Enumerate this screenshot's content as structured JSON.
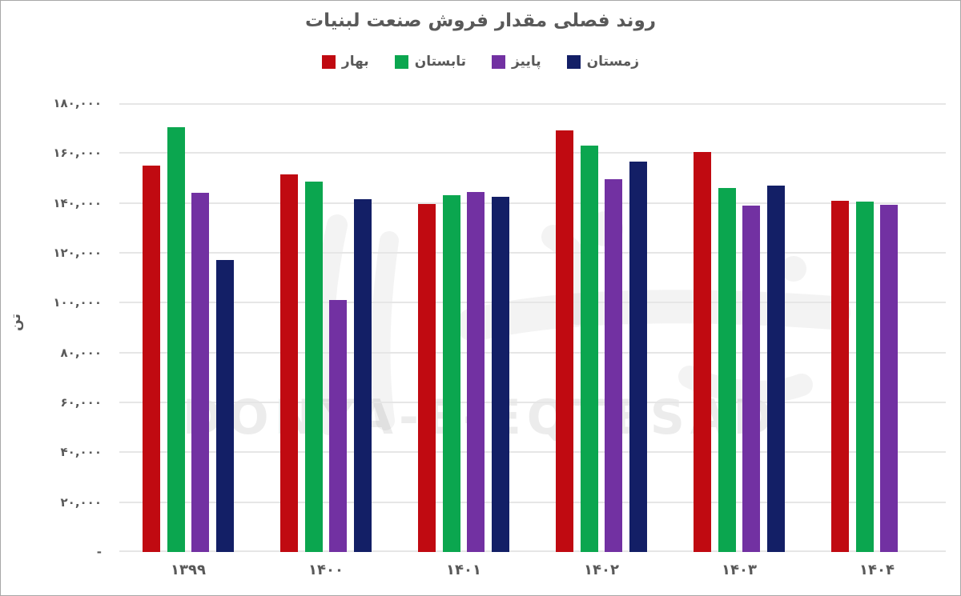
{
  "title": "روند فصلی مقدار فروش صنعت لبنیات",
  "legend": [
    {
      "key": "spring",
      "label": "بهار",
      "color": "#c00a11"
    },
    {
      "key": "summer",
      "label": "تابستان",
      "color": "#0ba64f"
    },
    {
      "key": "autumn",
      "label": "پاییز",
      "color": "#7231a2"
    },
    {
      "key": "winter",
      "label": "زمستان",
      "color": "#131f66"
    }
  ],
  "y_axis": {
    "title": "تن",
    "tick_labels": [
      "۱۸۰,۰۰۰",
      "۱۶۰,۰۰۰",
      "۱۴۰,۰۰۰",
      "۱۲۰,۰۰۰",
      "۱۰۰,۰۰۰",
      "۸۰,۰۰۰",
      "۶۰,۰۰۰",
      "۴۰,۰۰۰",
      "۲۰,۰۰۰",
      "-"
    ]
  },
  "x_axis": {
    "tick_labels": [
      "۱۳۹۹",
      "۱۴۰۰",
      "۱۴۰۱",
      "۱۴۰۲",
      "۱۴۰۳",
      "۱۴۰۴"
    ]
  },
  "watermark": {
    "text": "DONYA-E-EQTESAD"
  },
  "colors": {
    "text": "#595959",
    "gridline": "#e6e6e6",
    "background": "#ffffff"
  },
  "chart_data": {
    "type": "bar",
    "title": "روند فصلی مقدار فروش صنعت لبنیات",
    "categories": [
      "۱۳۹۹",
      "۱۴۰۰",
      "۱۴۰۱",
      "۱۴۰۲",
      "۱۴۰۳",
      "۱۴۰۴"
    ],
    "categories_latin": [
      1399,
      1400,
      1401,
      1402,
      1403,
      1404
    ],
    "series": [
      {
        "key": "spring",
        "name": "بهار",
        "color": "#c00a11",
        "values": [
          155000,
          151500,
          139500,
          169000,
          160500,
          141000
        ]
      },
      {
        "key": "summer",
        "name": "تابستان",
        "color": "#0ba64f",
        "values": [
          170500,
          148500,
          143000,
          163000,
          146000,
          140500
        ]
      },
      {
        "key": "autumn",
        "name": "پاییز",
        "color": "#7231a2",
        "values": [
          144000,
          101000,
          144500,
          149500,
          139000,
          139300
        ]
      },
      {
        "key": "winter",
        "name": "زمستان",
        "color": "#131f66",
        "values": [
          117000,
          141500,
          142500,
          156500,
          147000,
          null
        ]
      }
    ],
    "xlabel": "",
    "ylabel": "تن",
    "ylim": [
      0,
      180000
    ],
    "ytick_step": 20000,
    "grid": true,
    "legend_position": "top"
  }
}
